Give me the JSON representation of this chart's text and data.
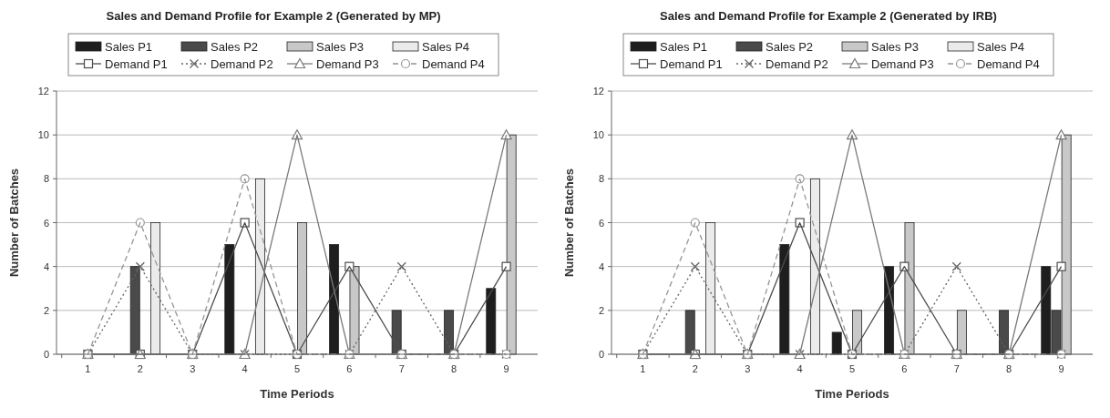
{
  "chart_data": [
    {
      "type": "bar",
      "title": "Sales and Demand Profile for Example 2 (Generated by MP)",
      "xlabel": "Time Periods",
      "ylabel": "Number of Batches",
      "categories": [
        "1",
        "2",
        "3",
        "4",
        "5",
        "6",
        "7",
        "8",
        "9"
      ],
      "ylim": [
        0,
        12
      ],
      "yticks": [
        0,
        2,
        4,
        6,
        8,
        10,
        12
      ],
      "grid": "y",
      "legend": "top",
      "series": [
        {
          "name": "Sales P1",
          "color": "#1e1e1e",
          "values": [
            0,
            0,
            0,
            5,
            0,
            5,
            0,
            0,
            3
          ]
        },
        {
          "name": "Sales P2",
          "color": "#4a4a4a",
          "values": [
            0,
            4,
            0,
            0,
            0,
            0,
            2,
            2,
            0
          ]
        },
        {
          "name": "Sales P3",
          "color": "#c8c8c8",
          "values": [
            0,
            0,
            0,
            0,
            6,
            4,
            0,
            0,
            10
          ]
        },
        {
          "name": "Sales P4",
          "color": "#ebebeb",
          "values": [
            0,
            6,
            0,
            8,
            0,
            0,
            0,
            0,
            0
          ]
        },
        {
          "name": "Demand P1",
          "type": "line",
          "color": "#4d4d4d",
          "marker": "square",
          "line_style": "solid",
          "values": [
            0,
            0,
            0,
            6,
            0,
            4,
            0,
            0,
            4
          ]
        },
        {
          "name": "Demand P2",
          "type": "line",
          "color": "#636363",
          "marker": "cross",
          "line_style": "dotted",
          "values": [
            0,
            4,
            0,
            0,
            0,
            0,
            4,
            0,
            0
          ]
        },
        {
          "name": "Demand P3",
          "type": "line",
          "color": "#7a7a7a",
          "marker": "triangle",
          "line_style": "solid",
          "values": [
            0,
            0,
            0,
            0,
            10,
            0,
            0,
            0,
            10
          ]
        },
        {
          "name": "Demand P4",
          "type": "line",
          "color": "#949494",
          "marker": "circle",
          "line_style": "dashed",
          "values": [
            0,
            6,
            0,
            8,
            0,
            0,
            0,
            0,
            0
          ]
        }
      ]
    },
    {
      "type": "bar",
      "title": "Sales and Demand Profile for Example 2 (Generated by IRB)",
      "xlabel": "Time Periods",
      "ylabel": "Number of Batches",
      "categories": [
        "1",
        "2",
        "3",
        "4",
        "5",
        "6",
        "7",
        "8",
        "9"
      ],
      "ylim": [
        0,
        12
      ],
      "yticks": [
        0,
        2,
        4,
        6,
        8,
        10,
        12
      ],
      "grid": "y",
      "legend": "top",
      "series": [
        {
          "name": "Sales P1",
          "color": "#1e1e1e",
          "values": [
            0,
            0,
            0,
            5,
            1,
            4,
            0,
            0,
            4
          ]
        },
        {
          "name": "Sales P2",
          "color": "#4a4a4a",
          "values": [
            0,
            2,
            0,
            0,
            0,
            0,
            0,
            2,
            2
          ]
        },
        {
          "name": "Sales P3",
          "color": "#c8c8c8",
          "values": [
            0,
            0,
            0,
            0,
            2,
            6,
            2,
            0,
            10
          ]
        },
        {
          "name": "Sales P4",
          "color": "#ebebeb",
          "values": [
            0,
            6,
            0,
            8,
            0,
            0,
            0,
            0,
            0
          ]
        },
        {
          "name": "Demand P1",
          "type": "line",
          "color": "#4d4d4d",
          "marker": "square",
          "line_style": "solid",
          "values": [
            0,
            0,
            0,
            6,
            0,
            4,
            0,
            0,
            4
          ]
        },
        {
          "name": "Demand P2",
          "type": "line",
          "color": "#636363",
          "marker": "cross",
          "line_style": "dotted",
          "values": [
            0,
            4,
            0,
            0,
            0,
            0,
            4,
            0,
            0
          ]
        },
        {
          "name": "Demand P3",
          "type": "line",
          "color": "#7a7a7a",
          "marker": "triangle",
          "line_style": "solid",
          "values": [
            0,
            0,
            0,
            0,
            10,
            0,
            0,
            0,
            10
          ]
        },
        {
          "name": "Demand P4",
          "type": "line",
          "color": "#949494",
          "marker": "circle",
          "line_style": "dashed",
          "values": [
            0,
            6,
            0,
            8,
            0,
            0,
            0,
            0,
            0
          ]
        }
      ]
    }
  ]
}
